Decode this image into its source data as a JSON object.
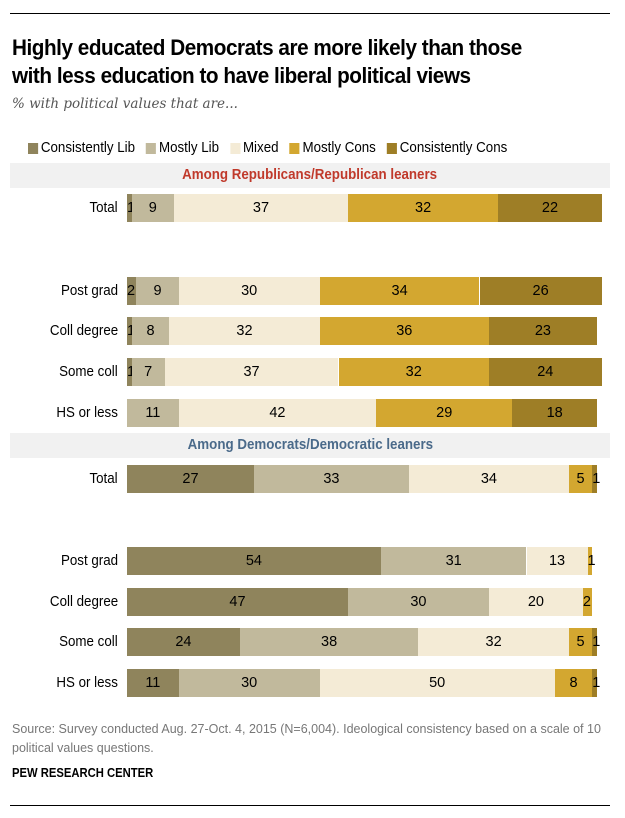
{
  "chart_data": {
    "type": "bar",
    "orientation": "horizontal-stacked",
    "title": "Highly educated Democrats are more likely than those with less education to have liberal political views",
    "subtitle": "% with political values that are...",
    "legend_position": "top",
    "series": [
      {
        "name": "Consistently Lib",
        "color": "#8f845c"
      },
      {
        "name": "Mostly Lib",
        "color": "#c1b99c"
      },
      {
        "name": "Mixed",
        "color": "#f4ebd6"
      },
      {
        "name": "Mostly Cons",
        "color": "#d3a730"
      },
      {
        "name": "Consistently Cons",
        "color": "#9e7e26"
      }
    ],
    "groups": [
      {
        "header": "Among Republicans/Republican leaners",
        "header_color": "#c0392b",
        "rows": [
          {
            "label": "Total",
            "values": [
              1,
              9,
              37,
              32,
              22
            ]
          },
          {
            "label": "Post grad",
            "values": [
              2,
              9,
              30,
              34,
              26
            ]
          },
          {
            "label": "Coll degree",
            "values": [
              1,
              8,
              32,
              36,
              23
            ]
          },
          {
            "label": "Some coll",
            "values": [
              1,
              7,
              37,
              32,
              24
            ]
          },
          {
            "label": "HS or less",
            "values": [
              0,
              11,
              42,
              29,
              18
            ]
          }
        ]
      },
      {
        "header": "Among Democrats/Democratic leaners",
        "header_color": "#4a6a8a",
        "rows": [
          {
            "label": "Total",
            "values": [
              27,
              33,
              34,
              5,
              1
            ]
          },
          {
            "label": "Post grad",
            "values": [
              54,
              31,
              13,
              1,
              0
            ]
          },
          {
            "label": "Coll degree",
            "values": [
              47,
              30,
              20,
              2,
              0
            ]
          },
          {
            "label": "Some coll",
            "values": [
              24,
              38,
              32,
              5,
              1
            ]
          },
          {
            "label": "HS or less",
            "values": [
              11,
              30,
              50,
              8,
              1
            ]
          }
        ]
      }
    ],
    "xlim": [
      0,
      100
    ]
  },
  "footer": {
    "source": "Source: Survey conducted Aug. 27-Oct. 4, 2015 (N=6,004). Ideological consistency based on a scale of 10 political values questions.",
    "brand": "PEW RESEARCH CENTER"
  }
}
